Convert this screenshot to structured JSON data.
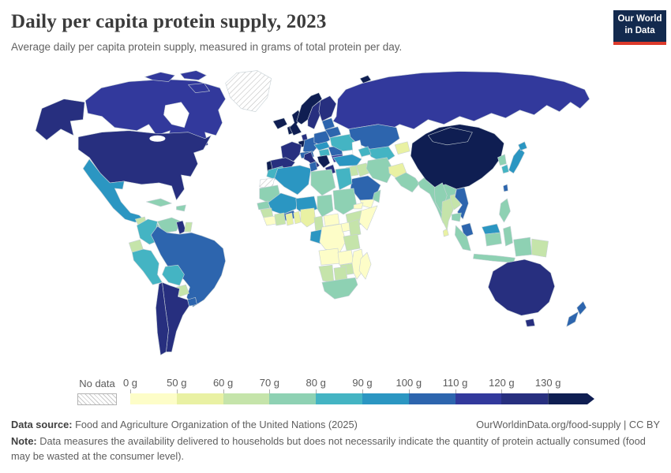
{
  "header": {
    "title": "Daily per capita protein supply, 2023",
    "subtitle": "Average daily per capita protein supply, measured in grams of total protein per day.",
    "logo_line1": "Our World",
    "logo_line2": "in Data"
  },
  "colors": {
    "logo_bg": "#132a4e",
    "logo_accent_red": "#dc3a2b",
    "country_border": "#c7d1d6"
  },
  "legend": {
    "no_data_label": "No data",
    "bins": [
      {
        "label": "0 g",
        "key": "0-50",
        "color": "#fdfdc8"
      },
      {
        "label": "50 g",
        "key": "50-60",
        "color": "#e9f1a3"
      },
      {
        "label": "60 g",
        "key": "60-70",
        "color": "#c5e4aa"
      },
      {
        "label": "70 g",
        "key": "70-80",
        "color": "#8ed1b3"
      },
      {
        "label": "80 g",
        "key": "80-90",
        "color": "#44b4c3"
      },
      {
        "label": "90 g",
        "key": "90-100",
        "color": "#2b96c2"
      },
      {
        "label": "100 g",
        "key": "100-110",
        "color": "#2d65ae"
      },
      {
        "label": "110 g",
        "key": "110-120",
        "color": "#32399c"
      },
      {
        "label": "120 g",
        "key": "120-130",
        "color": "#272f7f"
      },
      {
        "label": "130 g",
        "key": "130+",
        "color": "#0f1e52"
      }
    ]
  },
  "map": {
    "regions": {
      "greenland": "no-data",
      "western-sahara": "no-data",
      "canada": "110-120",
      "usa": "120-130",
      "alaska": "120-130",
      "mexico": "90-100",
      "guatemala": "60-70",
      "honduras": "70-80",
      "nicaragua-panama": "100-110",
      "cuba": "70-80",
      "hispaniola": "70-80",
      "colombia": "80-90",
      "venezuela": "70-80",
      "guyana": "120-130",
      "suriname": "60-70",
      "ecuador": "60-70",
      "peru": "80-90",
      "bolivia": "80-90",
      "brazil": "100-110",
      "paraguay": "60-70",
      "uruguay": "100-110",
      "argentina": "120-130",
      "chile": "120-130",
      "iceland": "130+",
      "ireland": "130+",
      "uk": "130+",
      "norway": "130+",
      "svalbard": "130+",
      "sweden": "120-130",
      "finland": "120-130",
      "denmark": "120-130",
      "france": "120-130",
      "spain": "120-130",
      "portugal": "130+",
      "benelux": "130+",
      "germany": "100-110",
      "poland": "100-110",
      "czech-slovakia": "90-100",
      "switzerland-austria": "100-110",
      "italy": "120-130",
      "balkans": "130+",
      "greece": "120-130",
      "hungary": "80-90",
      "romania": "100-110",
      "bulgaria": "110-120",
      "baltics": "100-110",
      "belarus": "100-110",
      "ukraine": "80-90",
      "russia": "110-120",
      "kazakhstan": "100-110",
      "uzbekistan-turkmenistan": "80-90",
      "kyrgyzstan-tajikistan": "50-60",
      "turkey": "90-100",
      "caucasus": "80-90",
      "syria-jordan": "60-70",
      "iraq": "60-70",
      "iran": "70-80",
      "saudi-arabia": "100-110",
      "yemen": "0-50",
      "oman": "70-80",
      "afghanistan": "50-60",
      "pakistan": "70-80",
      "india": "70-80",
      "bangladesh": "60-70",
      "sri-lanka": "50-60",
      "myanmar": "70-80",
      "thailand": "60-70",
      "laos": "60-70",
      "cambodia": "70-80",
      "vietnam": "100-110",
      "malaysia": "100-110",
      "sumatra": "70-80",
      "java": "70-80",
      "borneo-malaysia": "90-100",
      "borneo-indonesia": "70-80",
      "sulawesi": "70-80",
      "west-papua": "70-80",
      "papua-new-guinea": "60-70",
      "philippines": "70-80",
      "china": "130+",
      "mongolia": "130+",
      "taiwan": "100-110",
      "japan": "90-100",
      "south-korea": "80-90",
      "north-korea": "70-80",
      "morocco": "80-90",
      "algeria": "90-100",
      "tunisia": "100-110",
      "libya": "70-80",
      "egypt": "80-90",
      "mauritania": "70-80",
      "senegal": "70-80",
      "mali": "90-100",
      "burkina-faso": "100-110",
      "niger": "90-100",
      "chad": "70-80",
      "sudan": "70-80",
      "eritrea": "0-50",
      "ethiopia": "60-70",
      "somalia": "0-50",
      "guinea": "60-70",
      "sierra-leone-liberia": "0-50",
      "ivory-coast": "60-70",
      "ghana": "50-60",
      "togo-benin": "50-60",
      "nigeria": "50-60",
      "cameroon": "60-70",
      "central-african-republic": "0-50",
      "gabon-congo": "90-100",
      "drc": "0-50",
      "uganda": "0-50",
      "kenya": "60-70",
      "tanzania": "60-70",
      "angola": "0-50",
      "zambia": "0-50",
      "mozambique": "0-50",
      "zimbabwe": "60-70",
      "namibia": "60-70",
      "botswana": "60-70",
      "south-africa": "70-80",
      "madagascar": "0-50",
      "australia": "120-130",
      "tasmania": "120-130",
      "new-zealand-north": "100-110",
      "new-zealand-south": "100-110"
    }
  },
  "footer": {
    "source_label": "Data source:",
    "source_text": " Food and Agriculture Organization of the United Nations (2025)",
    "link_text": "OurWorldinData.org/food-supply | CC BY",
    "note_label": "Note:",
    "note_text": " Data measures the availability delivered to households but does not necessarily indicate the quantity of protein actually consumed (food may be wasted at the consumer level)."
  }
}
